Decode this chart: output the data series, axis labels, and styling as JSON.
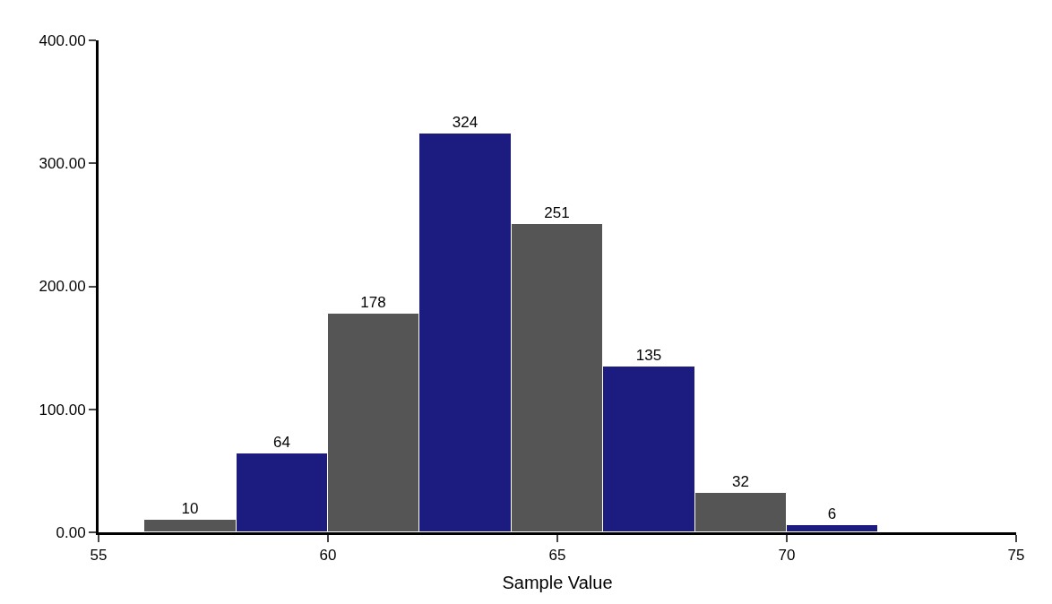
{
  "chart_data": {
    "type": "histogram",
    "xlabel": "Sample Value",
    "bins": [
      56,
      58,
      60,
      62,
      64,
      66,
      68,
      70,
      72
    ],
    "values": [
      10,
      64,
      178,
      324,
      251,
      135,
      32,
      6
    ],
    "colors": [
      "#555555",
      "#1c1c80",
      "#555555",
      "#1c1c80",
      "#555555",
      "#1c1c80",
      "#555555",
      "#1c1c80"
    ],
    "xlim": [
      55,
      75
    ],
    "xticks": [
      55,
      60,
      65,
      70,
      75
    ],
    "ylim": [
      0,
      400
    ],
    "yticks": [
      {
        "value": 0,
        "label": "0.00"
      },
      {
        "value": 100,
        "label": "100.00"
      },
      {
        "value": 200,
        "label": "200.00"
      },
      {
        "value": 300,
        "label": "300.00"
      },
      {
        "value": 400,
        "label": "400.00"
      }
    ],
    "data_labels": true
  }
}
